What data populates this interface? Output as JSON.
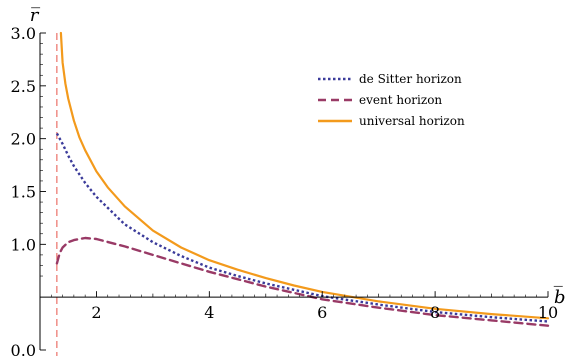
{
  "chart_data": {
    "type": "line",
    "title": "",
    "xlabel": "b̅",
    "ylabel": "r̅",
    "xlim": [
      1.0,
      10.0
    ],
    "ylim": [
      0.0,
      3.0
    ],
    "x_axis_crossing_y": 0.5,
    "x_ticks": [
      2,
      4,
      6,
      8,
      10
    ],
    "x_tick_labels": [
      "2",
      "4",
      "6",
      "8",
      "10"
    ],
    "y_ticks": [
      0.0,
      1.0,
      1.5,
      2.0,
      2.5,
      3.0
    ],
    "y_tick_labels": [
      "0.0",
      "1.0",
      "1.5",
      "2.0",
      "2.5",
      "3.0"
    ],
    "grid": false,
    "legend_position": "top-right",
    "reference_lines": [
      {
        "orientation": "vertical",
        "x": 1.299,
        "color": "#e8534a",
        "style": "dashed"
      }
    ],
    "series": [
      {
        "name": "de Sitter horizon",
        "color": "#3b3b9a",
        "style": "dotted",
        "x": [
          1.3,
          1.4,
          1.5,
          1.6,
          1.8,
          2.0,
          2.5,
          3.0,
          3.5,
          4.0,
          4.5,
          5.0,
          5.5,
          6.0,
          7.0,
          8.0,
          9.0,
          10.0
        ],
        "y": [
          2.05,
          1.95,
          1.84,
          1.74,
          1.58,
          1.45,
          1.19,
          1.02,
          0.89,
          0.78,
          0.7,
          0.63,
          0.57,
          0.51,
          0.43,
          0.36,
          0.31,
          0.27
        ]
      },
      {
        "name": "event horizon",
        "color": "#993a66",
        "style": "dashed",
        "x": [
          1.3,
          1.35,
          1.4,
          1.5,
          1.6,
          1.7,
          1.8,
          2.0,
          2.5,
          3.0,
          3.5,
          4.0,
          4.5,
          5.0,
          5.5,
          6.0,
          7.0,
          8.0,
          9.0,
          10.0
        ],
        "y": [
          0.82,
          0.92,
          0.97,
          1.02,
          1.04,
          1.05,
          1.06,
          1.05,
          0.98,
          0.9,
          0.82,
          0.74,
          0.67,
          0.6,
          0.54,
          0.48,
          0.4,
          0.33,
          0.28,
          0.23
        ]
      },
      {
        "name": "universal horizon",
        "color": "#f39a1c",
        "style": "solid",
        "x": [
          1.37,
          1.4,
          1.45,
          1.5,
          1.6,
          1.7,
          1.8,
          2.0,
          2.2,
          2.5,
          3.0,
          3.5,
          4.0,
          4.5,
          5.0,
          5.5,
          6.0,
          7.0,
          8.0,
          9.0,
          10.0
        ],
        "y": [
          3.0,
          2.72,
          2.52,
          2.38,
          2.17,
          2.01,
          1.89,
          1.69,
          1.54,
          1.36,
          1.13,
          0.97,
          0.85,
          0.76,
          0.68,
          0.61,
          0.55,
          0.46,
          0.39,
          0.34,
          0.3
        ]
      }
    ]
  }
}
